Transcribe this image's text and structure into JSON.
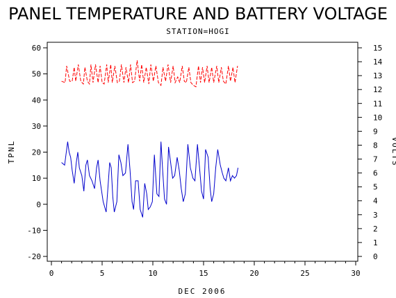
{
  "chart_data": {
    "type": "line",
    "title": "PANEL TEMPERATURE AND BATTERY VOLTAGE",
    "subtitle": "STATION=HOGI",
    "xlabel": "DEC 2006",
    "ylabel": "TPNL",
    "y2label": "VOLTS",
    "xlim": [
      0,
      30
    ],
    "ylim": [
      -20,
      60
    ],
    "y2lim": [
      0,
      15
    ],
    "x_ticks": [
      0,
      5,
      10,
      15,
      20,
      25,
      30
    ],
    "y_ticks": [
      -20,
      -10,
      0,
      10,
      20,
      30,
      40,
      50,
      60
    ],
    "y2_ticks": [
      0,
      1,
      2,
      3,
      4,
      5,
      6,
      7,
      8,
      9,
      10,
      11,
      12,
      13,
      14,
      15
    ],
    "grid": false,
    "series": [
      {
        "axis": "left",
        "color": "#0000cc",
        "style": "solid",
        "x": [
          1.0,
          1.3,
          1.6,
          1.75,
          1.9,
          2.05,
          2.25,
          2.45,
          2.6,
          2.75,
          3.0,
          3.2,
          3.4,
          3.55,
          3.75,
          4.0,
          4.25,
          4.45,
          4.6,
          4.8,
          5.1,
          5.4,
          5.55,
          5.75,
          5.9,
          6.05,
          6.2,
          6.45,
          6.65,
          6.85,
          7.05,
          7.3,
          7.55,
          7.75,
          7.95,
          8.1,
          8.3,
          8.55,
          8.75,
          9.0,
          9.2,
          9.4,
          9.55,
          9.75,
          9.95,
          10.15,
          10.4,
          10.6,
          10.8,
          10.95,
          11.15,
          11.35,
          11.55,
          11.75,
          11.95,
          12.15,
          12.4,
          12.6,
          12.8,
          13.0,
          13.2,
          13.45,
          13.7,
          13.95,
          14.15,
          14.4,
          14.6,
          14.8,
          15.0,
          15.2,
          15.45,
          15.65,
          15.8,
          16.0,
          16.2,
          16.4,
          16.65,
          16.85,
          17.0,
          17.2,
          17.45,
          17.65,
          17.85,
          18.05,
          18.25,
          18.4
        ],
        "values": [
          16,
          15,
          24,
          20,
          18,
          13,
          8,
          16,
          20,
          14,
          11,
          5,
          15,
          17,
          11,
          9,
          6,
          14,
          17,
          9,
          1,
          -3,
          5,
          16,
          14,
          3,
          -3,
          1,
          19,
          16,
          11,
          12,
          23,
          13,
          1,
          -2,
          9,
          9,
          -2,
          -5,
          8,
          4,
          -2,
          -1,
          1,
          19,
          4,
          3,
          24,
          14,
          2,
          0,
          22,
          16,
          10,
          11,
          18,
          13,
          6,
          1,
          4,
          23,
          14,
          10,
          9,
          23,
          14,
          5,
          2,
          21,
          18,
          6,
          1,
          4,
          14,
          21,
          15,
          12,
          10,
          9,
          14,
          9,
          11,
          10,
          11,
          14
        ]
      },
      {
        "axis": "right",
        "color": "#ff0000",
        "style": "dashed",
        "x": [
          1.0,
          1.35,
          1.5,
          1.8,
          2.05,
          2.25,
          2.4,
          2.65,
          2.9,
          3.15,
          3.3,
          3.55,
          3.75,
          3.9,
          4.1,
          4.35,
          4.6,
          4.8,
          5.0,
          5.2,
          5.45,
          5.6,
          5.85,
          6.0,
          6.25,
          6.5,
          6.7,
          6.9,
          7.15,
          7.35,
          7.6,
          7.8,
          8.0,
          8.2,
          8.45,
          8.7,
          8.9,
          9.1,
          9.35,
          9.6,
          9.8,
          10.05,
          10.3,
          10.55,
          10.8,
          11.0,
          11.25,
          11.5,
          11.75,
          12.0,
          12.2,
          12.45,
          12.65,
          12.9,
          13.1,
          13.3,
          13.55,
          13.75,
          14.0,
          14.25,
          14.5,
          14.7,
          14.9,
          15.1,
          15.35,
          15.55,
          15.8,
          16.0,
          16.3,
          16.5,
          16.75,
          16.95,
          17.2,
          17.45,
          17.65,
          17.9,
          18.1,
          18.35
        ],
        "values": [
          12.6,
          12.5,
          13.7,
          12.6,
          12.6,
          13.6,
          12.6,
          13.8,
          12.6,
          12.4,
          13.6,
          12.6,
          12.4,
          13.8,
          12.5,
          13.8,
          12.5,
          13.7,
          12.5,
          12.4,
          13.8,
          12.5,
          13.8,
          12.5,
          13.7,
          12.5,
          12.6,
          13.8,
          12.5,
          13.6,
          12.5,
          13.8,
          12.5,
          12.6,
          14.1,
          12.6,
          13.8,
          12.5,
          13.6,
          12.4,
          13.8,
          12.6,
          13.7,
          12.5,
          12.3,
          13.6,
          12.6,
          13.8,
          12.5,
          13.7,
          12.5,
          12.9,
          12.5,
          13.7,
          12.6,
          12.5,
          13.6,
          12.5,
          12.3,
          12.2,
          13.7,
          12.5,
          13.6,
          12.5,
          13.7,
          12.5,
          13.6,
          12.5,
          13.7,
          12.5,
          13.6,
          12.6,
          12.4,
          13.7,
          12.6,
          13.6,
          12.5,
          13.7
        ]
      }
    ]
  }
}
